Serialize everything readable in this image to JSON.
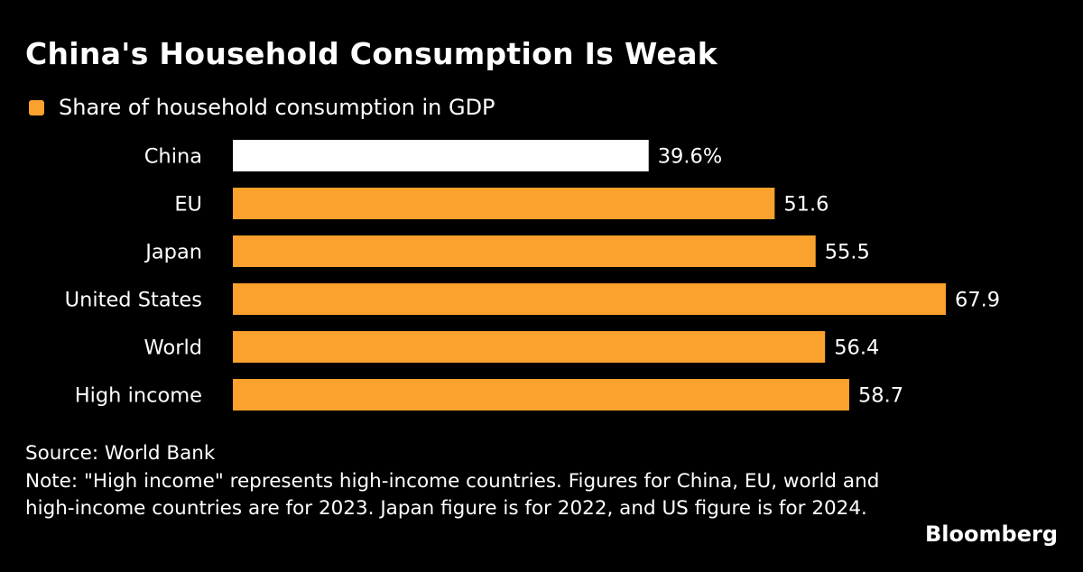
{
  "title": "China's Household Consumption Is Weak",
  "chart_data": {
    "type": "bar",
    "orientation": "horizontal",
    "title": "China's Household Consumption Is Weak",
    "legend": {
      "label": "Share of household consumption in GDP",
      "placement": "top-left"
    },
    "categories": [
      "China",
      "EU",
      "Japan",
      "United States",
      "World",
      "High income"
    ],
    "values": [
      39.6,
      51.6,
      55.5,
      67.9,
      56.4,
      58.7
    ],
    "value_labels": [
      "39.6%",
      "51.6",
      "55.5",
      "67.9",
      "56.4",
      "58.7"
    ],
    "highlight": "China",
    "colors": {
      "bar": "#fba12d",
      "highlight": "#ffffff",
      "background": "#000000"
    },
    "xlim": [
      0,
      67.9
    ],
    "grid": false
  },
  "footer": {
    "source": "Source: World Bank",
    "note": "Note: \"High income\" represents high-income countries. Figures for China, EU, world and high-income countries are for 2023. Japan figure is for 2022, and US figure is for 2024.",
    "brand": "Bloomberg"
  }
}
